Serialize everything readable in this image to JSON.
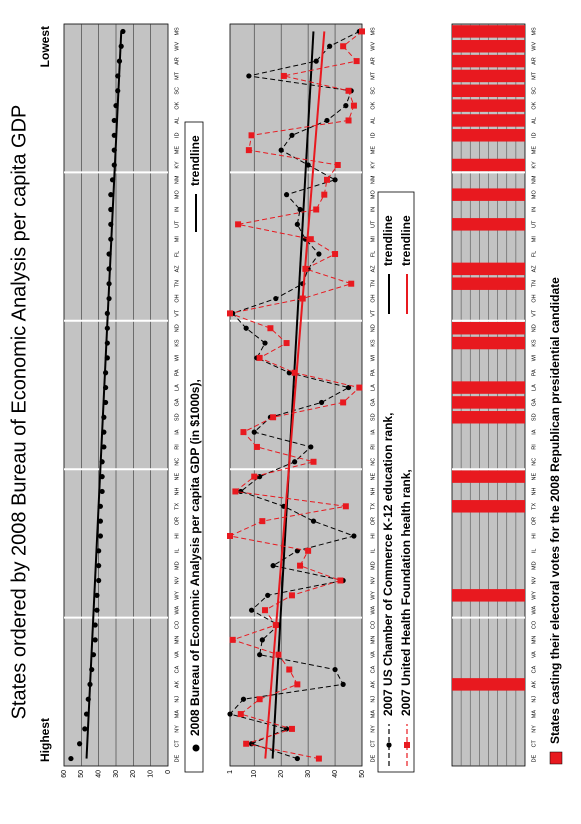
{
  "title": "States ordered by 2008 Bureau of Economic Analysis per capita GDP",
  "label_highest": "Highest",
  "label_lowest": "Lowest",
  "chart_data": [
    {
      "type": "scatter",
      "categories": [
        "DE",
        "CT",
        "NY",
        "MA",
        "NJ",
        "AK",
        "CA",
        "VA",
        "MN",
        "CO",
        "WA",
        "WY",
        "NV",
        "MD",
        "IL",
        "HI",
        "OR",
        "TX",
        "NH",
        "NE",
        "NC",
        "RI",
        "IA",
        "SD",
        "GA",
        "LA",
        "PA",
        "WI",
        "KS",
        "ND",
        "VT",
        "OH",
        "TN",
        "AZ",
        "FL",
        "MI",
        "UT",
        "IN",
        "MO",
        "NM",
        "KY",
        "ME",
        "ID",
        "AL",
        "OK",
        "SC",
        "MT",
        "AR",
        "WV",
        "MS"
      ],
      "series": [
        {
          "name": "2008 Bureau of Economic Analysis per capita GDP (in $1000s),",
          "color": "#000000",
          "marker": "circle",
          "trendline_label": "trendline",
          "trendline_color": "#000000",
          "values": [
            56,
            51,
            48,
            47,
            46,
            45,
            44,
            43,
            42,
            42,
            41,
            41,
            40,
            40,
            40,
            39,
            39,
            39,
            38,
            38,
            38,
            37,
            37,
            37,
            36,
            36,
            36,
            35,
            35,
            35,
            35,
            34,
            34,
            34,
            34,
            33,
            33,
            33,
            33,
            32,
            31,
            31,
            31,
            31,
            30,
            29,
            29,
            28,
            27,
            26
          ]
        }
      ],
      "ylim": [
        0,
        60
      ],
      "yticks": [
        0,
        10,
        20,
        30,
        40,
        50,
        60
      ],
      "grid": true
    },
    {
      "type": "line",
      "categories": [
        "DE",
        "CT",
        "NY",
        "MA",
        "NJ",
        "AK",
        "CA",
        "VA",
        "MN",
        "CO",
        "WA",
        "WY",
        "NV",
        "MD",
        "IL",
        "HI",
        "OR",
        "TX",
        "NH",
        "NE",
        "NC",
        "RI",
        "IA",
        "SD",
        "GA",
        "LA",
        "PA",
        "WI",
        "KS",
        "ND",
        "VT",
        "OH",
        "TN",
        "AZ",
        "FL",
        "MI",
        "UT",
        "IN",
        "MO",
        "NM",
        "KY",
        "ME",
        "ID",
        "AL",
        "OK",
        "SC",
        "MT",
        "AR",
        "WV",
        "MS"
      ],
      "series": [
        {
          "name": "2007 US Chamber of Commerce K-12 education rank,",
          "color": "#000000",
          "marker": "circle",
          "trendline_label": "trendline",
          "trendline_color": "#000000",
          "values": [
            26,
            9,
            22,
            1,
            6,
            43,
            40,
            12,
            13,
            19,
            9,
            15,
            43,
            17,
            26,
            47,
            32,
            21,
            5,
            12,
            25,
            31,
            10,
            16,
            35,
            45,
            23,
            11,
            14,
            7,
            2,
            18,
            28,
            30,
            34,
            29,
            26,
            27,
            22,
            40,
            30,
            20,
            24,
            37,
            44,
            46,
            8,
            33,
            38,
            49
          ]
        },
        {
          "name": "2007 United Health Foundation health rank,",
          "color": "#e8191f",
          "marker": "square",
          "trendline_label": "trendline",
          "trendline_color": "#e8191f",
          "values": [
            34,
            7,
            24,
            5,
            12,
            26,
            23,
            19,
            2,
            18,
            14,
            24,
            42,
            27,
            30,
            1,
            13,
            44,
            3,
            10,
            32,
            11,
            6,
            17,
            43,
            49,
            25,
            12,
            22,
            16,
            1,
            28,
            46,
            29,
            40,
            31,
            4,
            33,
            36,
            37,
            41,
            8,
            9,
            45,
            47,
            45,
            21,
            48,
            43,
            50
          ]
        }
      ],
      "ylim": [
        1,
        50
      ],
      "y_inverted": true,
      "yticks": [
        1,
        10,
        20,
        30,
        40,
        50
      ],
      "grid": true,
      "line_style": "dashed"
    },
    {
      "type": "bar",
      "categories": [
        "DE",
        "CT",
        "NY",
        "MA",
        "NJ",
        "AK",
        "CA",
        "VA",
        "MN",
        "CO",
        "WA",
        "WY",
        "NV",
        "MD",
        "IL",
        "HI",
        "OR",
        "TX",
        "NH",
        "NE",
        "NC",
        "RI",
        "IA",
        "SD",
        "GA",
        "LA",
        "PA",
        "WI",
        "KS",
        "ND",
        "VT",
        "OH",
        "TN",
        "AZ",
        "FL",
        "MI",
        "UT",
        "IN",
        "MO",
        "NM",
        "KY",
        "ME",
        "ID",
        "AL",
        "OK",
        "SC",
        "MT",
        "AR",
        "WV",
        "MS"
      ],
      "series": [
        {
          "name": "States casting their electoral votes for the 2008 Republican presidential candidate",
          "color": "#e8191f",
          "values": [
            0,
            0,
            0,
            0,
            0,
            1,
            0,
            0,
            0,
            0,
            0,
            1,
            0,
            0,
            0,
            0,
            0,
            1,
            0,
            1,
            0,
            0,
            0,
            1,
            1,
            1,
            0,
            0,
            1,
            1,
            0,
            0,
            1,
            1,
            0,
            0,
            1,
            0,
            1,
            0,
            1,
            0,
            1,
            1,
            1,
            1,
            1,
            1,
            1,
            1
          ]
        }
      ],
      "ylim": [
        0,
        1
      ]
    }
  ]
}
